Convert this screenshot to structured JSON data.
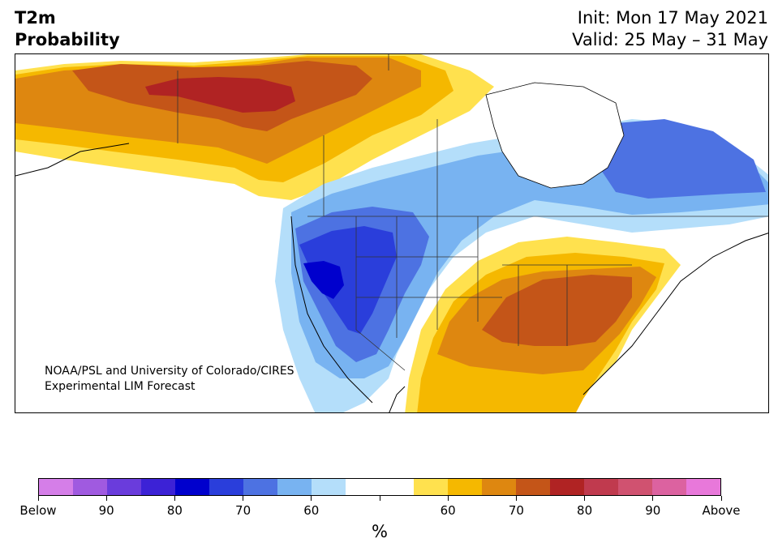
{
  "header": {
    "title_line1": "T2m",
    "title_line2": "Probability",
    "init": "Init: Mon 17 May 2021",
    "valid": "Valid: 25 May – 31 May"
  },
  "map": {
    "credit_line1": "NOAA/PSL and University of Colorado/CIRES",
    "credit_line2": "Experimental LIM Forecast",
    "colors": {
      "land": "#ffffff",
      "border": "#333333",
      "below_60": "#b4defa",
      "below_70": "#78b3f1",
      "below_80": "#4d72e2",
      "below_90": "#2a3edb",
      "below_95": "#0000cd",
      "above_60": "#ffe14e",
      "above_70": "#f5b800",
      "above_80": "#de8710",
      "above_90": "#c45518",
      "above_95": "#b02323"
    }
  },
  "colorbar": {
    "unit": "%",
    "colors": [
      "#d57ee8",
      "#a05ae0",
      "#6a3cdc",
      "#3c22d6",
      "#0000cd",
      "#2a3edb",
      "#4d72e2",
      "#78b3f1",
      "#b4defa",
      "#ffffff",
      "#ffffff",
      "#ffe14e",
      "#f5b800",
      "#de8710",
      "#c45518",
      "#b02323",
      "#c03a4e",
      "#d05270",
      "#dc62a0",
      "#e878da"
    ],
    "labels": [
      "Below",
      "90",
      "80",
      "70",
      "60",
      "",
      "60",
      "70",
      "80",
      "90",
      "Above"
    ]
  }
}
